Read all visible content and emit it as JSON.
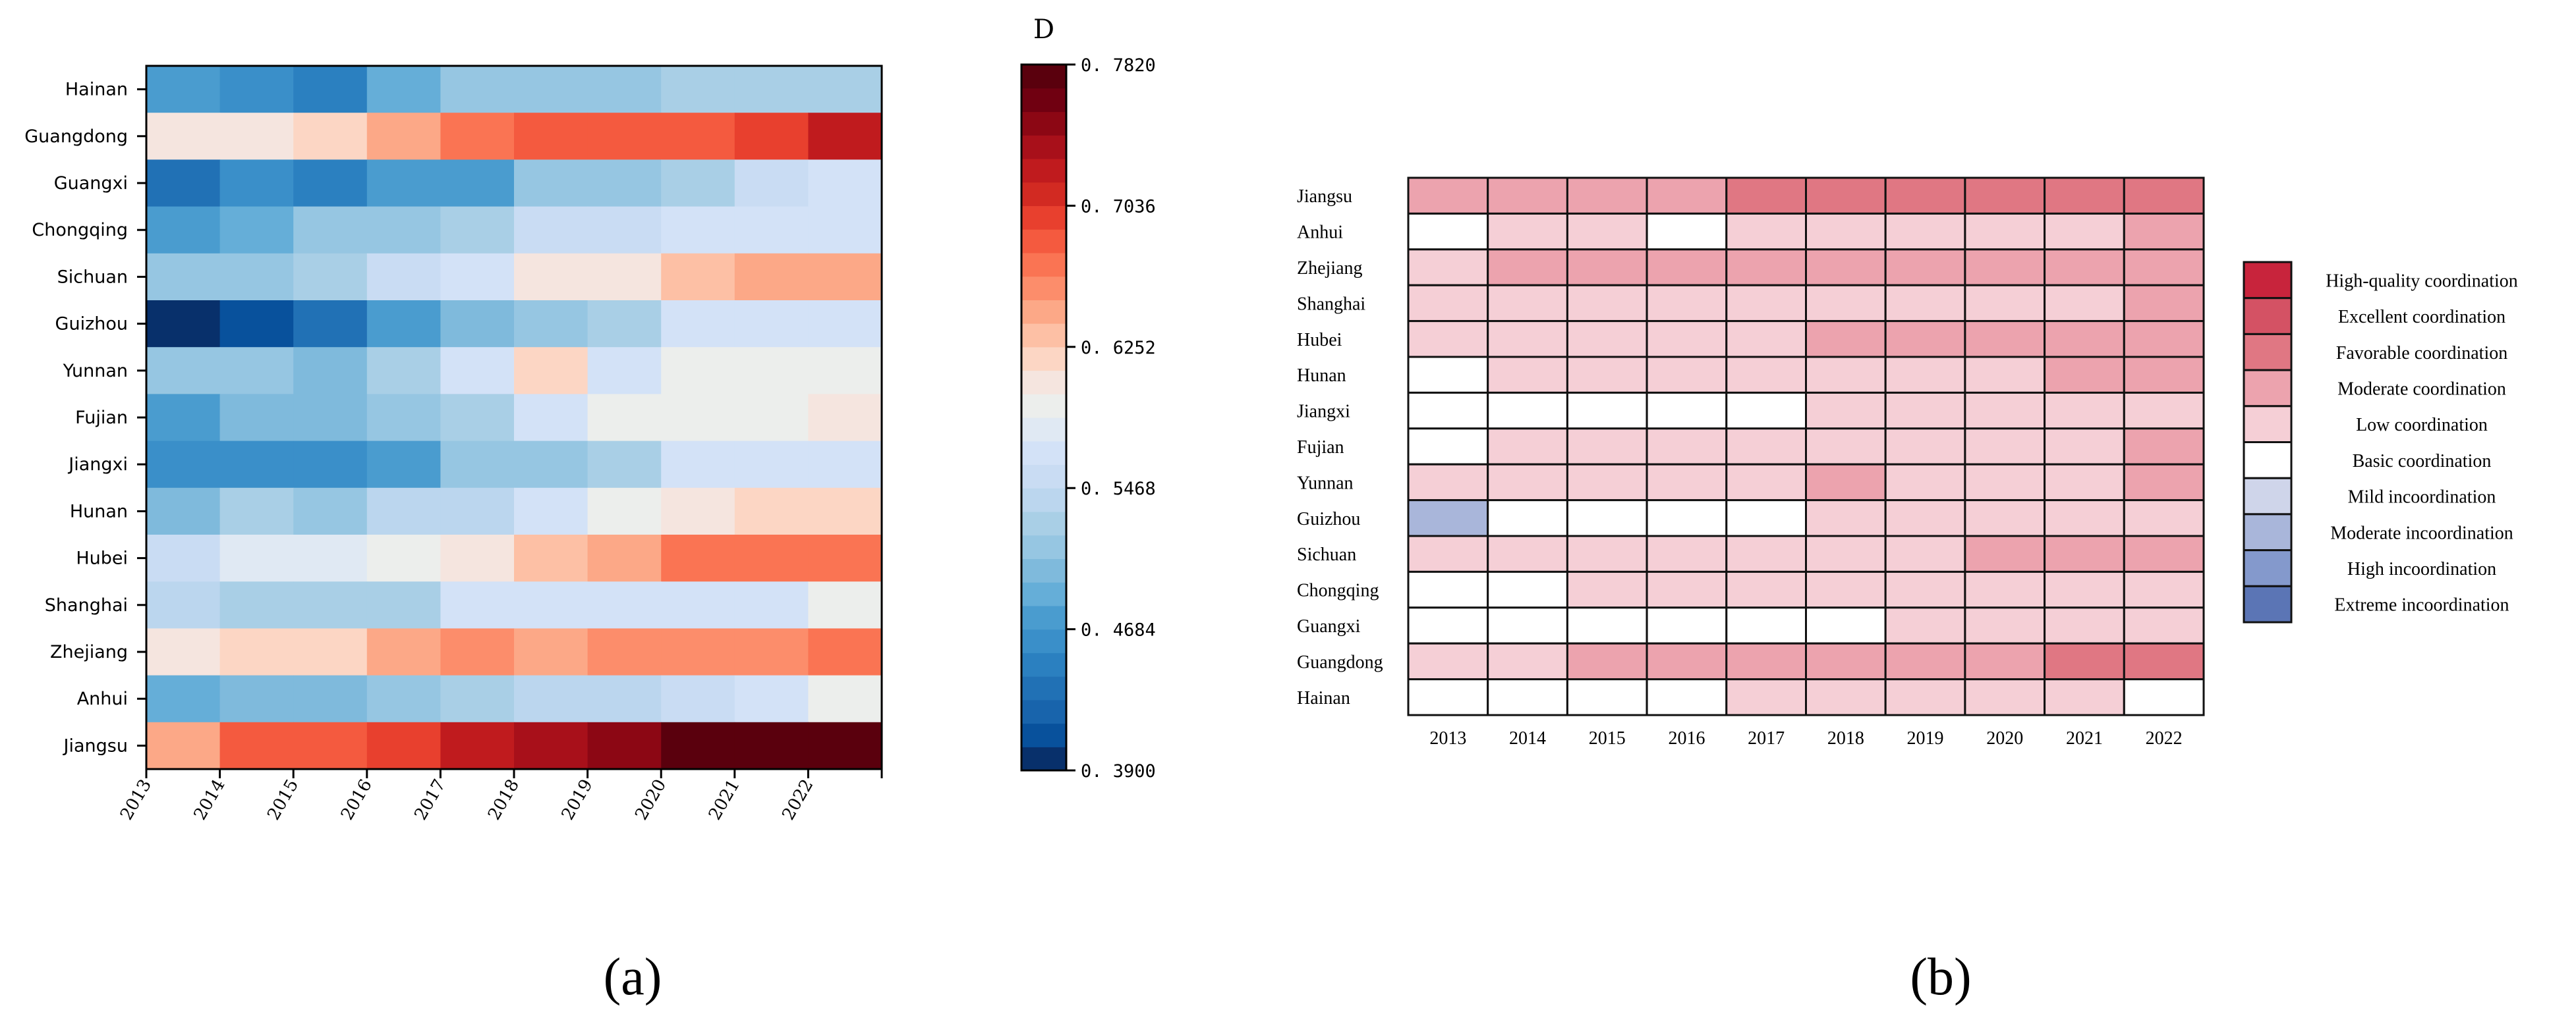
{
  "panel_labels": [
    "(a)",
    "(b)"
  ],
  "chart_data": [
    {
      "id": "panel-a",
      "type": "heatmap",
      "title": "",
      "xlabel": "",
      "ylabel": "",
      "x": [
        "2013",
        "2014",
        "2015",
        "2016",
        "2017",
        "2018",
        "2019",
        "2020",
        "2021",
        "2022"
      ],
      "y": [
        "Hainan",
        "Guangdong",
        "Guangxi",
        "Chongqing",
        "Sichuan",
        "Guizhou",
        "Yunnan",
        "Fujian",
        "Jiangxi",
        "Hunan",
        "Hubei",
        "Shanghai",
        "Zhejiang",
        "Anhui",
        "Jiangsu"
      ],
      "values": [
        [
          0.47,
          0.46,
          0.45,
          0.49,
          0.51,
          0.51,
          0.52,
          0.53,
          0.53,
          0.53
        ],
        [
          0.6,
          0.61,
          0.62,
          0.65,
          0.67,
          0.68,
          0.68,
          0.69,
          0.7,
          0.72
        ],
        [
          0.43,
          0.46,
          0.45,
          0.48,
          0.48,
          0.51,
          0.52,
          0.53,
          0.55,
          0.56
        ],
        [
          0.48,
          0.49,
          0.51,
          0.52,
          0.53,
          0.55,
          0.55,
          0.57,
          0.57,
          0.57
        ],
        [
          0.51,
          0.51,
          0.53,
          0.55,
          0.57,
          0.6,
          0.61,
          0.63,
          0.65,
          0.65
        ],
        [
          0.39,
          0.41,
          0.44,
          0.47,
          0.5,
          0.51,
          0.53,
          0.57,
          0.56,
          0.56
        ],
        [
          0.52,
          0.51,
          0.5,
          0.53,
          0.56,
          0.62,
          0.57,
          0.59,
          0.59,
          0.59
        ],
        [
          0.48,
          0.5,
          0.5,
          0.52,
          0.53,
          0.56,
          0.59,
          0.59,
          0.59,
          0.61
        ],
        [
          0.46,
          0.46,
          0.46,
          0.48,
          0.51,
          0.51,
          0.53,
          0.56,
          0.56,
          0.57
        ],
        [
          0.5,
          0.53,
          0.52,
          0.54,
          0.54,
          0.56,
          0.59,
          0.61,
          0.62,
          0.62
        ],
        [
          0.55,
          0.58,
          0.58,
          0.59,
          0.61,
          0.63,
          0.65,
          0.67,
          0.67,
          0.67
        ],
        [
          0.54,
          0.53,
          0.53,
          0.53,
          0.56,
          0.56,
          0.57,
          0.57,
          0.56,
          0.59
        ],
        [
          0.61,
          0.62,
          0.62,
          0.65,
          0.66,
          0.65,
          0.66,
          0.66,
          0.66,
          0.67
        ],
        [
          0.49,
          0.5,
          0.5,
          0.52,
          0.53,
          0.54,
          0.54,
          0.55,
          0.56,
          0.59
        ],
        [
          0.65,
          0.68,
          0.68,
          0.7,
          0.72,
          0.73,
          0.75,
          0.78,
          0.78,
          0.78
        ]
      ],
      "colorbar": {
        "label": "D",
        "min": 0.39,
        "max": 0.782,
        "ticks": [
          0.39,
          0.4684,
          0.5468,
          0.6252,
          0.7036,
          0.782
        ],
        "tick_labels": [
          "0. 3900",
          "0. 4684",
          "0. 5468",
          "0. 6252",
          "0. 7036",
          "0. 7820"
        ],
        "colors": [
          "#08306b",
          "#08519c",
          "#1864ac",
          "#2171b5",
          "#2b80c0",
          "#3a8fc9",
          "#4a9ccf",
          "#65aed8",
          "#7fbadc",
          "#96c6e2",
          "#a9cfe6",
          "#bbd6ee",
          "#c9dcf3",
          "#d3e2f7",
          "#e0e9f3",
          "#eceeec",
          "#f5e5df",
          "#fcd6c4",
          "#fdc0a5",
          "#fca887",
          "#fc8d6b",
          "#fa7453",
          "#f45a3f",
          "#e8402e",
          "#d22a22",
          "#c01b1e",
          "#a8101a",
          "#8c0714",
          "#700011",
          "#5a000d"
        ]
      }
    },
    {
      "id": "panel-b",
      "type": "heatmap",
      "title": "",
      "x": [
        "2013",
        "2014",
        "2015",
        "2016",
        "2017",
        "2018",
        "2019",
        "2020",
        "2021",
        "2022"
      ],
      "y": [
        "Jiangsu",
        "Anhui",
        "Zhejiang",
        "Shanghai",
        "Hubei",
        "Hunan",
        "Jiangxi",
        "Fujian",
        "Yunnan",
        "Guizhou",
        "Sichuan",
        "Chongqing",
        "Guangxi",
        "Guangdong",
        "Hainan"
      ],
      "categories": [
        "Extreme incoordination",
        "High incoordination",
        "Moderate incoordination",
        "Mild incoordination",
        "Basic coordination",
        "Low coordination",
        "Moderate coordination",
        "Favorable coordination",
        "Excellent coordination",
        "High-quality coordination"
      ],
      "category_colors": [
        "#5b75b5",
        "#8499cc",
        "#a9b6da",
        "#cfd5ea",
        "#ffffff",
        "#f5cfd6",
        "#eca3ae",
        "#e07783",
        "#d45264",
        "#c8243c"
      ],
      "category_index": [
        [
          6,
          6,
          6,
          6,
          7,
          7,
          7,
          7,
          7,
          7
        ],
        [
          4,
          5,
          5,
          4,
          5,
          5,
          5,
          5,
          5,
          6
        ],
        [
          5,
          6,
          6,
          6,
          6,
          6,
          6,
          6,
          6,
          6
        ],
        [
          5,
          5,
          5,
          5,
          5,
          5,
          5,
          5,
          5,
          6
        ],
        [
          5,
          5,
          5,
          5,
          5,
          6,
          6,
          6,
          6,
          6
        ],
        [
          4,
          5,
          5,
          5,
          5,
          5,
          5,
          5,
          6,
          6
        ],
        [
          4,
          4,
          4,
          4,
          4,
          5,
          5,
          5,
          5,
          5
        ],
        [
          4,
          5,
          5,
          5,
          5,
          5,
          5,
          5,
          5,
          6
        ],
        [
          5,
          5,
          5,
          5,
          5,
          6,
          5,
          5,
          5,
          6
        ],
        [
          2,
          4,
          4,
          4,
          4,
          5,
          5,
          5,
          5,
          5
        ],
        [
          5,
          5,
          5,
          5,
          5,
          5,
          5,
          6,
          6,
          6
        ],
        [
          4,
          4,
          5,
          5,
          5,
          5,
          5,
          5,
          5,
          5
        ],
        [
          4,
          4,
          4,
          4,
          4,
          4,
          5,
          5,
          5,
          5
        ],
        [
          5,
          5,
          6,
          6,
          6,
          6,
          6,
          6,
          7,
          7
        ],
        [
          4,
          4,
          4,
          4,
          5,
          5,
          5,
          5,
          5,
          4
        ]
      ],
      "legend": {
        "placement": "right",
        "items": [
          "High-quality coordination",
          "Excellent coordination",
          "Favorable coordination",
          "Moderate coordination",
          "Low coordination",
          "Basic coordination",
          "Mild incoordination",
          "Moderate incoordination",
          "High incoordination",
          "Extreme incoordination"
        ]
      }
    }
  ]
}
